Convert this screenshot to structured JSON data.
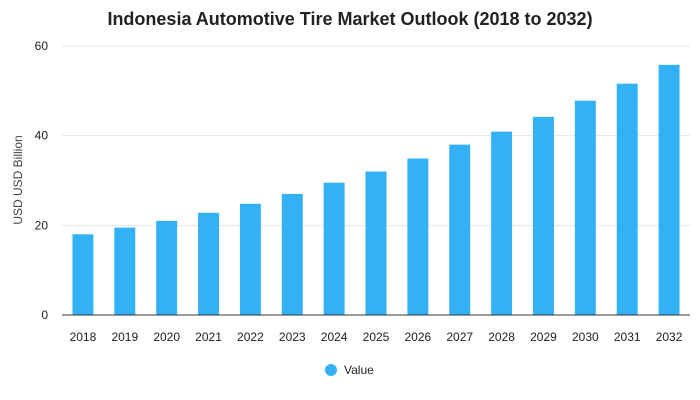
{
  "chart_data": {
    "type": "bar",
    "title": "Indonesia Automotive Tire Market Outlook (2018 to 2032)",
    "ylabel": "USD USD Billion",
    "xlabel": "",
    "categories": [
      "2018",
      "2019",
      "2020",
      "2021",
      "2022",
      "2023",
      "2024",
      "2025",
      "2026",
      "2027",
      "2028",
      "2029",
      "2030",
      "2031",
      "2032"
    ],
    "series": [
      {
        "name": "Value",
        "values": [
          18.0,
          19.5,
          21.0,
          22.8,
          24.8,
          27.0,
          29.5,
          32.0,
          34.9,
          38.0,
          40.9,
          44.2,
          47.8,
          51.6,
          55.8
        ]
      }
    ],
    "ylim": [
      0,
      60
    ],
    "yticks": [
      0,
      20,
      40,
      60
    ],
    "grid": true,
    "legend_position": "bottom",
    "colors": {
      "bar": "#33b1f5",
      "grid": "#e6e6e6",
      "axis": "#333333"
    }
  }
}
